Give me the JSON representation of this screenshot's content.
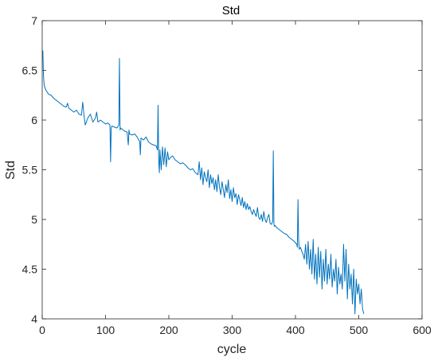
{
  "chart_data": {
    "type": "line",
    "title": "Std",
    "xlabel": "cycle",
    "ylabel": "Std",
    "xlim": [
      0,
      600
    ],
    "ylim": [
      4,
      7
    ],
    "xticks": [
      0,
      100,
      200,
      300,
      400,
      500,
      600
    ],
    "yticks": [
      4,
      4.5,
      5,
      5.5,
      6,
      6.5,
      7
    ],
    "grid": false,
    "line_color": "#0072BD",
    "series": [
      {
        "x": [
          1,
          2,
          3,
          4,
          6,
          8,
          10,
          14,
          18,
          22,
          26,
          30,
          34,
          38,
          40,
          42,
          46,
          50,
          54,
          58,
          62,
          64,
          66,
          68,
          72,
          76,
          80,
          84,
          86,
          88,
          92,
          96,
          100,
          104,
          107,
          108,
          109,
          110,
          114,
          118,
          121,
          122,
          123,
          124,
          126,
          130,
          134,
          136,
          137,
          138,
          142,
          146,
          150,
          154,
          155,
          156,
          160,
          164,
          168,
          172,
          176,
          180,
          182,
          183,
          184,
          185,
          186,
          188,
          190,
          192,
          194,
          196,
          198,
          200,
          202,
          206,
          210,
          214,
          218,
          222,
          226,
          230,
          234,
          238,
          242,
          246,
          248,
          250,
          252,
          254,
          256,
          258,
          260,
          262,
          264,
          266,
          268,
          270,
          272,
          274,
          276,
          278,
          280,
          282,
          284,
          286,
          288,
          290,
          292,
          294,
          296,
          298,
          300,
          302,
          304,
          306,
          308,
          310,
          312,
          314,
          316,
          318,
          320,
          322,
          324,
          326,
          328,
          330,
          332,
          334,
          336,
          338,
          340,
          342,
          344,
          346,
          348,
          350,
          352,
          354,
          356,
          358,
          360,
          362,
          364,
          365,
          366,
          367,
          368,
          370,
          374,
          378,
          382,
          386,
          390,
          394,
          398,
          402,
          403,
          404,
          405,
          406,
          408,
          410,
          412,
          414,
          416,
          418,
          420,
          422,
          424,
          426,
          428,
          430,
          432,
          434,
          436,
          438,
          440,
          442,
          444,
          446,
          448,
          450,
          452,
          454,
          456,
          458,
          460,
          462,
          464,
          466,
          468,
          470,
          472,
          474,
          476,
          478,
          480,
          482,
          484,
          486,
          488,
          490,
          492,
          494,
          496,
          498,
          500,
          502,
          504,
          506,
          508
        ],
        "y": [
          6.7,
          6.45,
          6.36,
          6.33,
          6.3,
          6.28,
          6.26,
          6.25,
          6.22,
          6.2,
          6.18,
          6.16,
          6.14,
          6.13,
          6.17,
          6.12,
          6.1,
          6.08,
          6.1,
          6.06,
          6.05,
          6.18,
          6.05,
          5.95,
          6.02,
          6.06,
          5.98,
          6.02,
          6.08,
          5.98,
          6.0,
          5.98,
          5.96,
          5.97,
          5.95,
          5.58,
          5.92,
          5.94,
          5.93,
          5.92,
          5.95,
          6.62,
          5.9,
          5.92,
          5.91,
          5.89,
          5.88,
          5.75,
          5.9,
          5.86,
          5.85,
          5.86,
          5.83,
          5.78,
          5.65,
          5.82,
          5.8,
          5.83,
          5.78,
          5.76,
          5.75,
          5.74,
          5.7,
          6.15,
          5.6,
          5.47,
          5.7,
          5.5,
          5.73,
          5.55,
          5.72,
          5.53,
          5.68,
          5.6,
          5.62,
          5.64,
          5.6,
          5.58,
          5.56,
          5.57,
          5.55,
          5.52,
          5.5,
          5.51,
          5.47,
          5.45,
          5.58,
          5.4,
          5.52,
          5.35,
          5.48,
          5.42,
          5.38,
          5.5,
          5.32,
          5.45,
          5.36,
          5.42,
          5.3,
          5.4,
          5.28,
          5.45,
          5.33,
          5.25,
          5.38,
          5.3,
          5.22,
          5.35,
          5.27,
          5.4,
          5.21,
          5.3,
          5.18,
          5.32,
          5.22,
          5.26,
          5.15,
          5.25,
          5.2,
          5.14,
          5.22,
          5.12,
          5.18,
          5.1,
          5.16,
          5.1,
          5.13,
          5.08,
          5.05,
          5.1,
          5.06,
          5.03,
          5.12,
          5.02,
          5.0,
          5.05,
          4.98,
          5.08,
          5.0,
          4.97,
          5.02,
          5.05,
          4.96,
          4.95,
          4.98,
          5.69,
          4.95,
          4.93,
          4.94,
          4.92,
          4.9,
          4.88,
          4.86,
          4.85,
          4.82,
          4.8,
          4.78,
          4.75,
          4.72,
          5.2,
          4.8,
          4.7,
          4.72,
          4.68,
          4.65,
          4.6,
          4.75,
          4.55,
          4.78,
          4.5,
          4.7,
          4.45,
          4.8,
          4.4,
          4.65,
          4.35,
          4.72,
          4.42,
          4.68,
          4.3,
          4.6,
          4.38,
          4.7,
          4.35,
          4.55,
          4.4,
          4.65,
          4.32,
          4.5,
          4.38,
          4.6,
          4.25,
          4.52,
          4.35,
          4.45,
          4.3,
          4.75,
          4.38,
          4.7,
          4.2,
          4.55,
          4.3,
          4.45,
          4.15,
          4.5,
          4.05,
          4.4,
          4.25,
          4.35,
          4.15,
          4.3,
          4.1,
          4.05
        ]
      }
    ]
  }
}
